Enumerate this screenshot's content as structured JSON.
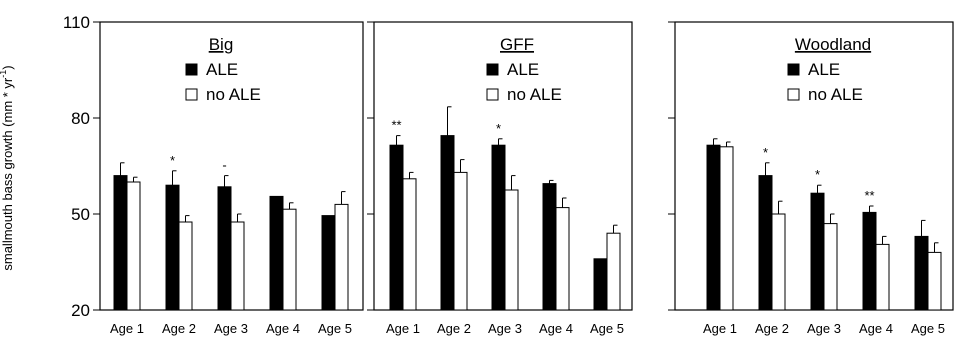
{
  "chart_data": [
    {
      "type": "bar",
      "title": "Big",
      "categories": [
        "Age 1",
        "Age 2",
        "Age 3",
        "Age 4",
        "Age 5"
      ],
      "series": [
        {
          "name": "ALE",
          "values": [
            62,
            59,
            58.5,
            55.5,
            49.5
          ],
          "errors": [
            4,
            4.5,
            3.5,
            0,
            0
          ]
        },
        {
          "name": "no ALE",
          "values": [
            60,
            47.5,
            47.5,
            51.5,
            53
          ],
          "errors": [
            1.5,
            2,
            2.5,
            2,
            4
          ]
        }
      ],
      "significance": [
        "",
        "*",
        "-",
        "",
        ""
      ],
      "ylim": [
        20,
        110
      ],
      "yticks": [
        20,
        50,
        80,
        110
      ],
      "legend": "top-center"
    },
    {
      "type": "bar",
      "title": "GFF",
      "categories": [
        "Age 1",
        "Age 2",
        "Age 3",
        "Age 4",
        "Age 5"
      ],
      "series": [
        {
          "name": "ALE",
          "values": [
            71.5,
            74.5,
            71.5,
            59.5,
            36
          ],
          "errors": [
            3,
            9,
            2,
            1,
            0
          ]
        },
        {
          "name": "no ALE",
          "values": [
            61,
            63,
            57.5,
            52,
            44
          ],
          "errors": [
            2,
            4,
            4.5,
            3,
            2.5
          ]
        }
      ],
      "significance": [
        "**",
        "",
        "*",
        "",
        ""
      ],
      "ylim": [
        20,
        110
      ],
      "yticks": [
        20,
        50,
        80,
        110
      ],
      "legend": "top-center"
    },
    {
      "type": "bar",
      "title": "Woodland",
      "categories": [
        "Age 1",
        "Age 2",
        "Age 3",
        "Age 4",
        "Age 5"
      ],
      "series": [
        {
          "name": "ALE",
          "values": [
            71.5,
            62,
            56.5,
            50.5,
            43
          ],
          "errors": [
            2,
            4,
            2.5,
            2,
            5
          ]
        },
        {
          "name": "no ALE",
          "values": [
            71,
            50,
            47,
            40.5,
            38
          ],
          "errors": [
            1.5,
            4,
            3,
            2.5,
            3
          ]
        }
      ],
      "significance": [
        "",
        "*",
        "*",
        "**",
        ""
      ],
      "ylim": [
        20,
        110
      ],
      "yticks": [
        20,
        50,
        80,
        110
      ],
      "legend": "top-right"
    }
  ],
  "ylabel": {
    "main": "smallmouth bass growth (mm * yr",
    "sup": "-1",
    "close": ")"
  },
  "colors": {
    "ale": "#000000",
    "no_ale": "#ffffff",
    "axis": "#000000"
  }
}
